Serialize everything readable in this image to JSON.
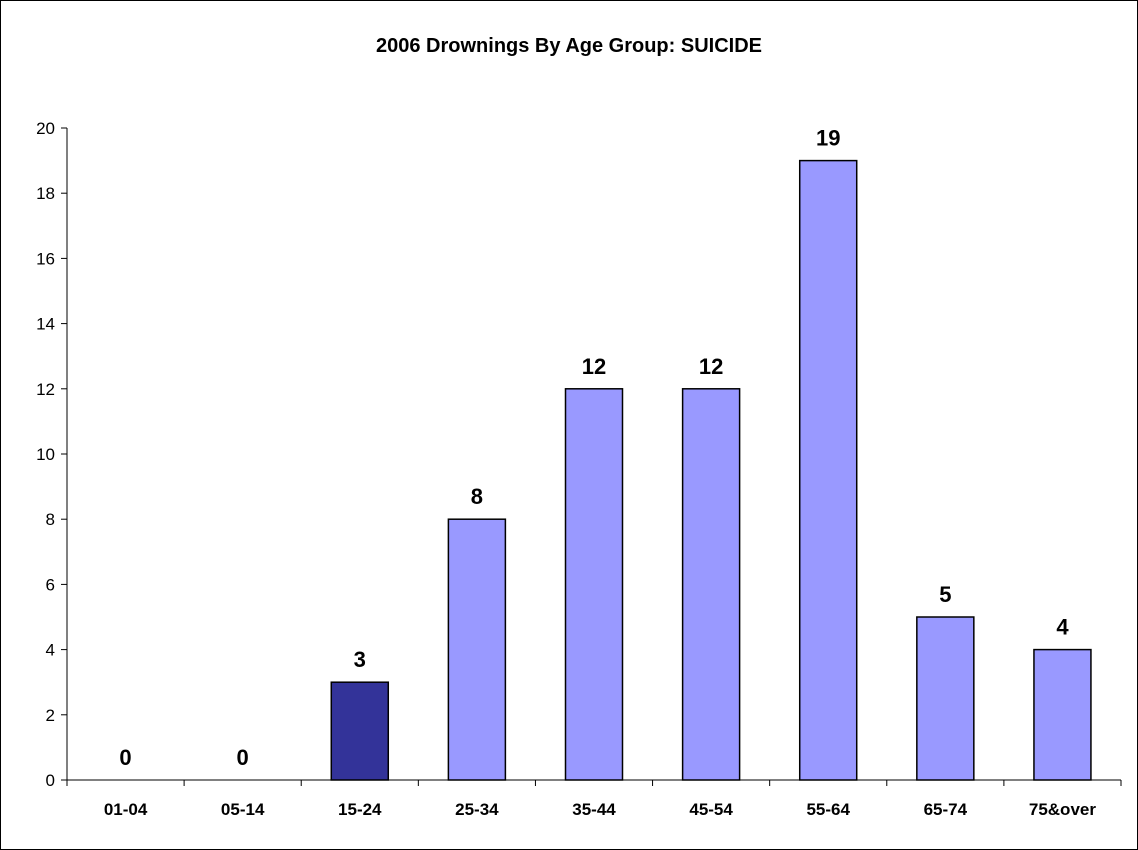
{
  "chart_data": {
    "type": "bar",
    "title": "2006 Drownings By Age Group: SUICIDE",
    "xlabel": "",
    "ylabel": "",
    "categories": [
      "01-04",
      "05-14",
      "15-24",
      "25-34",
      "35-44",
      "45-54",
      "55-64",
      "65-74",
      "75&over"
    ],
    "series": [
      {
        "values": [
          0,
          0,
          3,
          8,
          12,
          12,
          19,
          5,
          4
        ]
      }
    ],
    "ylim": [
      0,
      20
    ],
    "yticks": [
      0,
      2,
      4,
      6,
      8,
      10,
      12,
      14,
      16,
      18,
      20
    ],
    "data_labels": true,
    "grid": false,
    "legend": "none",
    "colors": {
      "bar": "#9999ff",
      "highlight_bar": "#333399",
      "bar_outline": "#000000"
    },
    "highlight_category": "15-24"
  }
}
